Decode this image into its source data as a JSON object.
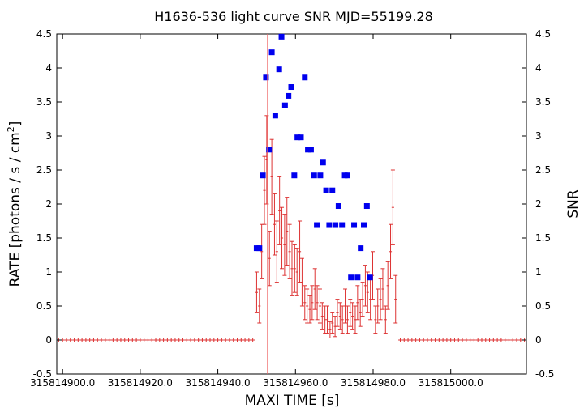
{
  "chart_data": {
    "type": "scatter",
    "title": "H1636-536 light curve  SNR MJD=55199.28",
    "xlabel": "MAXI TIME [s]",
    "ylabel": "RATE [photons / s / cm",
    "ylabel_sup": "2",
    "ylabel_end": "]",
    "y2label": "SNR",
    "xlim": [
      315814898.5,
      315815019.5
    ],
    "ylim": [
      -0.5,
      4.5
    ],
    "y2lim": [
      -0.5,
      4.5
    ],
    "x_ticks": [
      315814900,
      315814920,
      315814940,
      315814960,
      315814980,
      315815000
    ],
    "x_tick_labels": [
      "315814900.0",
      "315814920.0",
      "315814940.0",
      "315814960.0",
      "315814980.0",
      "315815000.0"
    ],
    "y_ticks": [
      -0.5,
      0,
      0.5,
      1,
      1.5,
      2,
      2.5,
      3,
      3.5,
      4,
      4.5
    ],
    "y_tick_labels": [
      "-0.5",
      "0",
      "0.5",
      "1",
      "1.5",
      "2",
      "2.5",
      "3",
      "3.5",
      "4",
      "4.5"
    ],
    "y2_ticks": [
      -0.5,
      0,
      0.5,
      1,
      1.5,
      2,
      2.5,
      3,
      3.5,
      4,
      4.5
    ],
    "y2_tick_labels": [
      "-0.5",
      "0",
      "0.5",
      "1",
      "1.5",
      "2",
      "2.5",
      "3",
      "3.5",
      "4",
      "4.5"
    ],
    "grid": false,
    "vertical_line_x": 315814952.8,
    "rate_zero_bin_width": 1,
    "series": [
      {
        "color": "#dd3333",
        "style": "error-bars",
        "bin_width": 0.65,
        "points": [
          {
            "x": 315814950.0,
            "y": 0.7,
            "err": 0.3
          },
          {
            "x": 315814950.7,
            "y": 0.5,
            "err": 0.25
          },
          {
            "x": 315814951.3,
            "y": 1.3,
            "err": 0.4
          },
          {
            "x": 315814952.0,
            "y": 2.2,
            "err": 0.5
          },
          {
            "x": 315814952.6,
            "y": 2.65,
            "err": 0.65
          },
          {
            "x": 315814953.3,
            "y": 1.2,
            "err": 0.4
          },
          {
            "x": 315814953.9,
            "y": 2.4,
            "err": 0.55
          },
          {
            "x": 315814954.6,
            "y": 1.7,
            "err": 0.45
          },
          {
            "x": 315814955.2,
            "y": 1.3,
            "err": 0.45
          },
          {
            "x": 315814955.9,
            "y": 1.9,
            "err": 0.5
          },
          {
            "x": 315814956.5,
            "y": 1.5,
            "err": 0.45
          },
          {
            "x": 315814957.2,
            "y": 1.4,
            "err": 0.45
          },
          {
            "x": 315814957.8,
            "y": 1.6,
            "err": 0.5
          },
          {
            "x": 315814958.5,
            "y": 1.3,
            "err": 0.4
          },
          {
            "x": 315814959.1,
            "y": 1.05,
            "err": 0.4
          },
          {
            "x": 315814959.8,
            "y": 1.05,
            "err": 0.35
          },
          {
            "x": 315814960.4,
            "y": 1.0,
            "err": 0.35
          },
          {
            "x": 315814961.1,
            "y": 1.3,
            "err": 0.45
          },
          {
            "x": 315814961.7,
            "y": 0.85,
            "err": 0.35
          },
          {
            "x": 315814962.4,
            "y": 0.55,
            "err": 0.25
          },
          {
            "x": 315814963.0,
            "y": 0.5,
            "err": 0.25
          },
          {
            "x": 315814963.7,
            "y": 0.45,
            "err": 0.2
          },
          {
            "x": 315814964.3,
            "y": 0.55,
            "err": 0.25
          },
          {
            "x": 315814965.0,
            "y": 0.75,
            "err": 0.3
          },
          {
            "x": 315814965.6,
            "y": 0.55,
            "err": 0.25
          },
          {
            "x": 315814966.3,
            "y": 0.5,
            "err": 0.25
          },
          {
            "x": 315814966.9,
            "y": 0.35,
            "err": 0.2
          },
          {
            "x": 315814967.6,
            "y": 0.3,
            "err": 0.2
          },
          {
            "x": 315814968.2,
            "y": 0.3,
            "err": 0.2
          },
          {
            "x": 315814968.9,
            "y": 0.15,
            "err": 0.12
          },
          {
            "x": 315814969.5,
            "y": 0.25,
            "err": 0.15
          },
          {
            "x": 315814970.2,
            "y": 0.2,
            "err": 0.15
          },
          {
            "x": 315814970.8,
            "y": 0.4,
            "err": 0.2
          },
          {
            "x": 315814971.5,
            "y": 0.35,
            "err": 0.2
          },
          {
            "x": 315814972.1,
            "y": 0.3,
            "err": 0.2
          },
          {
            "x": 315814972.8,
            "y": 0.5,
            "err": 0.25
          },
          {
            "x": 315814973.4,
            "y": 0.3,
            "err": 0.2
          },
          {
            "x": 315814974.1,
            "y": 0.4,
            "err": 0.2
          },
          {
            "x": 315814974.7,
            "y": 0.35,
            "err": 0.2
          },
          {
            "x": 315814975.4,
            "y": 0.3,
            "err": 0.2
          },
          {
            "x": 315814976.0,
            "y": 0.55,
            "err": 0.25
          },
          {
            "x": 315814976.7,
            "y": 0.4,
            "err": 0.2
          },
          {
            "x": 315814977.3,
            "y": 0.6,
            "err": 0.25
          },
          {
            "x": 315814978.0,
            "y": 0.8,
            "err": 0.3
          },
          {
            "x": 315814978.6,
            "y": 0.7,
            "err": 0.3
          },
          {
            "x": 315814979.3,
            "y": 0.6,
            "err": 0.3
          },
          {
            "x": 315814979.9,
            "y": 0.95,
            "err": 0.35
          },
          {
            "x": 315814980.6,
            "y": 0.3,
            "err": 0.2
          },
          {
            "x": 315814981.2,
            "y": 0.5,
            "err": 0.25
          },
          {
            "x": 315814981.9,
            "y": 0.6,
            "err": 0.3
          },
          {
            "x": 315814982.5,
            "y": 0.75,
            "err": 0.3
          },
          {
            "x": 315814983.2,
            "y": 0.3,
            "err": 0.2
          },
          {
            "x": 315814983.8,
            "y": 0.8,
            "err": 0.35
          },
          {
            "x": 315814984.5,
            "y": 1.3,
            "err": 0.4
          },
          {
            "x": 315814985.1,
            "y": 1.95,
            "err": 0.55
          },
          {
            "x": 315814985.8,
            "y": 0.6,
            "err": 0.35
          }
        ]
      },
      {
        "color": "#0000ee",
        "style": "square-markers",
        "axis": "right",
        "points": [
          {
            "x": 315814950.0,
            "y": 1.35
          },
          {
            "x": 315814950.7,
            "y": 1.35
          },
          {
            "x": 315814951.6,
            "y": 2.42
          },
          {
            "x": 315814952.4,
            "y": 3.86
          },
          {
            "x": 315814953.2,
            "y": 2.8
          },
          {
            "x": 315814953.9,
            "y": 4.23
          },
          {
            "x": 315814954.8,
            "y": 3.3
          },
          {
            "x": 315814955.8,
            "y": 3.98
          },
          {
            "x": 315814956.4,
            "y": 4.46
          },
          {
            "x": 315814957.3,
            "y": 3.45
          },
          {
            "x": 315814958.2,
            "y": 3.59
          },
          {
            "x": 315814958.9,
            "y": 3.72
          },
          {
            "x": 315814959.7,
            "y": 2.42
          },
          {
            "x": 315814960.5,
            "y": 2.98
          },
          {
            "x": 315814961.4,
            "y": 2.98
          },
          {
            "x": 315814962.4,
            "y": 3.86
          },
          {
            "x": 315814963.2,
            "y": 2.8
          },
          {
            "x": 315814964.0,
            "y": 2.8
          },
          {
            "x": 315814964.8,
            "y": 2.42
          },
          {
            "x": 315814965.5,
            "y": 1.69
          },
          {
            "x": 315814966.4,
            "y": 2.42
          },
          {
            "x": 315814967.1,
            "y": 2.61
          },
          {
            "x": 315814967.9,
            "y": 2.2
          },
          {
            "x": 315814968.7,
            "y": 1.69
          },
          {
            "x": 315814969.5,
            "y": 2.2
          },
          {
            "x": 315814970.3,
            "y": 1.69
          },
          {
            "x": 315814971.1,
            "y": 1.97
          },
          {
            "x": 315814972.0,
            "y": 1.69
          },
          {
            "x": 315814972.7,
            "y": 2.42
          },
          {
            "x": 315814973.4,
            "y": 2.42
          },
          {
            "x": 315814974.3,
            "y": 0.92
          },
          {
            "x": 315814975.1,
            "y": 1.69
          },
          {
            "x": 315814976.0,
            "y": 0.92
          },
          {
            "x": 315814976.8,
            "y": 1.35
          },
          {
            "x": 315814977.6,
            "y": 1.69
          },
          {
            "x": 315814978.4,
            "y": 1.97
          },
          {
            "x": 315814979.2,
            "y": 0.92
          }
        ]
      }
    ]
  }
}
